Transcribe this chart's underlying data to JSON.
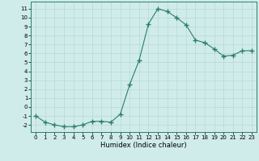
{
  "x": [
    0,
    1,
    2,
    3,
    4,
    5,
    6,
    7,
    8,
    9,
    10,
    11,
    12,
    13,
    14,
    15,
    16,
    17,
    18,
    19,
    20,
    21,
    22,
    23
  ],
  "y": [
    -1,
    -1.7,
    -2.0,
    -2.2,
    -2.2,
    -2.0,
    -1.6,
    -1.6,
    -1.7,
    -0.8,
    2.5,
    5.2,
    9.3,
    11.0,
    10.7,
    10.0,
    9.2,
    7.5,
    7.2,
    6.5,
    5.7,
    5.8,
    6.3,
    6.3
  ],
  "line_color": "#2d7d6e",
  "marker": "+",
  "marker_size": 4,
  "bg_color": "#cfecea",
  "grid_color": "#b8d8d5",
  "xlabel": "Humidex (Indice chaleur)",
  "xlim": [
    -0.5,
    23.5
  ],
  "ylim": [
    -2.8,
    11.8
  ],
  "yticks": [
    -2,
    -1,
    0,
    1,
    2,
    3,
    4,
    5,
    6,
    7,
    8,
    9,
    10,
    11
  ],
  "xticks": [
    0,
    1,
    2,
    3,
    4,
    5,
    6,
    7,
    8,
    9,
    10,
    11,
    12,
    13,
    14,
    15,
    16,
    17,
    18,
    19,
    20,
    21,
    22,
    23
  ],
  "axis_fontsize": 5.5,
  "tick_fontsize": 5.0,
  "xlabel_fontsize": 6.0
}
